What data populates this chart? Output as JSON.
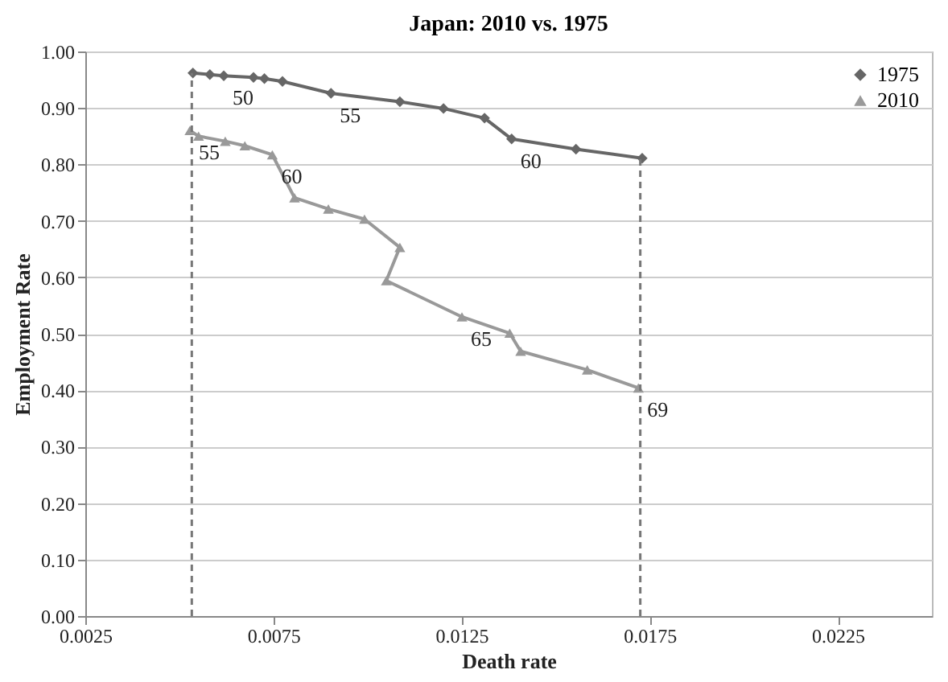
{
  "chart_data": {
    "type": "line",
    "title": "Japan: 2010 vs. 1975",
    "xlabel": "Death rate",
    "ylabel": "Employment Rate",
    "xlim": [
      0.0025,
      0.025
    ],
    "xticks": [
      0.0025,
      0.0075,
      0.0125,
      0.0175,
      0.0225
    ],
    "ylim": [
      0,
      1
    ],
    "yticks": [
      {
        "value": 0,
        "label": "0.00"
      },
      {
        "value": 0.1,
        "label": "0.10"
      },
      {
        "value": 0.2,
        "label": "0.20"
      },
      {
        "value": 0.3,
        "label": "0.30"
      },
      {
        "value": 0.4,
        "label": "0.40"
      },
      {
        "value": 0.5,
        "label": "0.50"
      },
      {
        "value": 0.6,
        "label": "0.60"
      },
      {
        "value": 0.7,
        "label": "0.70"
      },
      {
        "value": 0.8,
        "label": "0.80"
      },
      {
        "value": 0.9,
        "label": "0.90"
      },
      {
        "value": 1,
        "label": "1.00"
      }
    ],
    "grid": "y",
    "legend": "top right",
    "series": [
      {
        "name": "1975",
        "color": "#666666",
        "marker": "diamond",
        "line_style": "solid",
        "x": [
          0.00536,
          0.00581,
          0.00618,
          0.00697,
          0.00726,
          0.00774,
          0.00903,
          0.01086,
          0.01202,
          0.01311,
          0.01383,
          0.01554,
          0.0173
        ],
        "values": [
          0.962,
          0.959,
          0.957,
          0.954,
          0.952,
          0.947,
          0.926,
          0.911,
          0.899,
          0.882,
          0.845,
          0.827,
          0.811
        ]
      },
      {
        "name": "2010",
        "color": "#999999",
        "marker": "triangle",
        "line_style": "solid",
        "x": [
          0.00528,
          0.00551,
          0.00622,
          0.00674,
          0.00747,
          0.00806,
          0.00896,
          0.00992,
          0.01086,
          0.0105,
          0.01251,
          0.01378,
          0.01407,
          0.01584,
          0.0172
        ],
        "values": [
          0.86,
          0.85,
          0.841,
          0.833,
          0.817,
          0.741,
          0.721,
          0.703,
          0.653,
          0.594,
          0.53,
          0.501,
          0.469,
          0.436,
          0.404
        ]
      },
      {
        "color": "#777777",
        "marker": "none",
        "line_style": "dashed",
        "x": [
          0.00533,
          0.00533
        ],
        "values": [
          0,
          0.962
        ]
      },
      {
        "color": "#777777",
        "marker": "none",
        "line_style": "dashed",
        "x": [
          0.01725,
          0.01725
        ],
        "values": [
          0,
          0.811
        ]
      }
    ],
    "annotations": [
      {
        "text": "50",
        "x": 0.00618,
        "y": 0.957
      },
      {
        "text": "55",
        "x": 0.00903,
        "y": 0.926
      },
      {
        "text": "60",
        "x": 0.01383,
        "y": 0.845
      },
      {
        "text": "55",
        "x": 0.00528,
        "y": 0.86
      },
      {
        "text": "60",
        "x": 0.00747,
        "y": 0.817
      },
      {
        "text": "65",
        "x": 0.01251,
        "y": 0.53
      },
      {
        "text": "69",
        "x": 0.0172,
        "y": 0.404
      }
    ]
  }
}
